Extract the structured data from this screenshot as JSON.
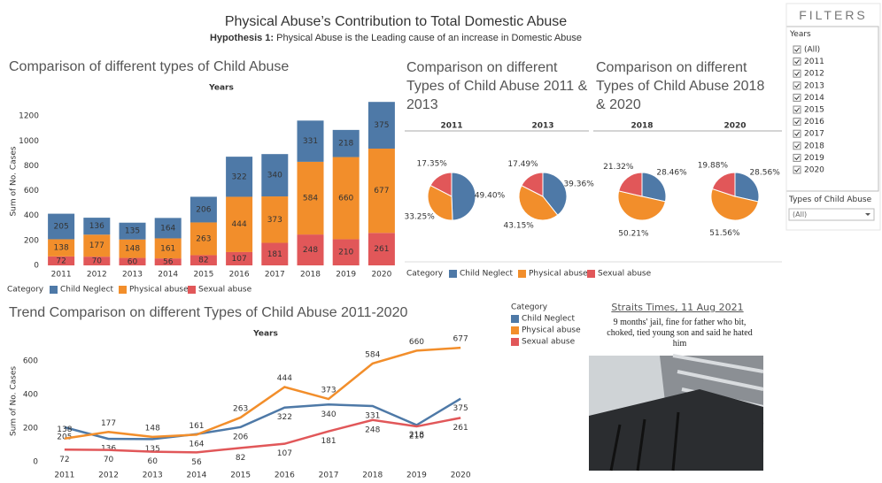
{
  "header": {
    "title": "Physical Abuse’s Contribution to Total Domestic Abuse",
    "hypothesis_label": "Hypothesis 1:",
    "hypothesis": "Physical Abuse is the Leading cause of an increase in Domestic Abuse"
  },
  "chart_data": [
    {
      "type": "stacked_bar",
      "title": "Comparison of different types of  Child Abuse",
      "x_title": "Years",
      "y_title": "Sum of No. Cases",
      "legend_title": "Category",
      "categories": [
        "2011",
        "2012",
        "2013",
        "2014",
        "2015",
        "2016",
        "2017",
        "2018",
        "2019",
        "2020"
      ],
      "series": [
        {
          "name": "Child Neglect",
          "color": "#4e79a7",
          "values": [
            205,
            136,
            135,
            164,
            206,
            322,
            340,
            331,
            218,
            375
          ]
        },
        {
          "name": "Physical abuse",
          "color": "#f28e2b",
          "values": [
            138,
            177,
            148,
            161,
            263,
            444,
            373,
            584,
            660,
            677
          ]
        },
        {
          "name": "Sexual abuse",
          "color": "#e15759",
          "values": [
            72,
            70,
            60,
            56,
            82,
            107,
            181,
            248,
            210,
            261
          ]
        }
      ],
      "ylim": [
        0,
        1350
      ],
      "yticks": [
        0,
        200,
        400,
        600,
        800,
        1000,
        1200
      ],
      "grid": false
    },
    {
      "type": "pie",
      "title": "Comparison on different Types of Child Abuse 2011 & 2013",
      "legend_title": "Category",
      "categories": [
        "Child Neglect",
        "Physical abuse",
        "Sexual abuse"
      ],
      "colors": [
        "#4e79a7",
        "#f28e2b",
        "#e15759"
      ],
      "pies": [
        {
          "name": "2011",
          "values": [
            49.4,
            33.25,
            17.35
          ],
          "value_labels": [
            "49.40%",
            "33.25%",
            "17.35%"
          ]
        },
        {
          "name": "2013",
          "values": [
            39.36,
            43.15,
            17.49
          ],
          "value_labels": [
            "39.36%",
            "43.15%",
            "17.49%"
          ]
        }
      ]
    },
    {
      "type": "pie",
      "title": "Comparison on different Types of Child Abuse 2018 & 2020",
      "colors": [
        "#4e79a7",
        "#f28e2b",
        "#e15759"
      ],
      "pies": [
        {
          "name": "2018",
          "values": [
            28.46,
            50.21,
            21.32
          ],
          "value_labels": [
            "28.46%",
            "50.21%",
            "21.32%"
          ]
        },
        {
          "name": "2020",
          "values": [
            28.56,
            51.56,
            19.88
          ],
          "value_labels": [
            "28.56%",
            "51.56%",
            "19.88%"
          ]
        }
      ]
    },
    {
      "type": "line",
      "title": "Trend Comparison on different Types of Child Abuse 2011-2020",
      "x_title": "Years",
      "y_title": "Sum of No. Cases",
      "legend_title": "Category",
      "categories": [
        "2011",
        "2012",
        "2013",
        "2014",
        "2015",
        "2016",
        "2017",
        "2018",
        "2019",
        "2020"
      ],
      "series": [
        {
          "name": "Child Neglect",
          "color": "#4e79a7",
          "values": [
            205,
            136,
            135,
            164,
            206,
            322,
            340,
            331,
            218,
            375
          ]
        },
        {
          "name": "Physical abuse",
          "color": "#f28e2b",
          "values": [
            138,
            177,
            148,
            161,
            263,
            444,
            373,
            584,
            660,
            677
          ]
        },
        {
          "name": "Sexual abuse",
          "color": "#e15759",
          "values": [
            72,
            70,
            60,
            56,
            82,
            107,
            181,
            248,
            210,
            261
          ]
        }
      ],
      "ylim": [
        0,
        720
      ],
      "yticks": [
        0,
        200,
        400,
        600
      ],
      "grid": false
    }
  ],
  "filters": {
    "title": "FILTERS",
    "years_label": "Years",
    "years": [
      "(All)",
      "2011",
      "2012",
      "2013",
      "2014",
      "2015",
      "2016",
      "2017",
      "2018",
      "2019",
      "2020"
    ],
    "checked": true,
    "type_label": "Types of Child Abuse",
    "type_value": "(All)"
  },
  "news": {
    "source": "Straits Times, 11 Aug 2021",
    "headline": "9 months' jail, fine for father who bit, choked, tied young son and said he hated him"
  }
}
